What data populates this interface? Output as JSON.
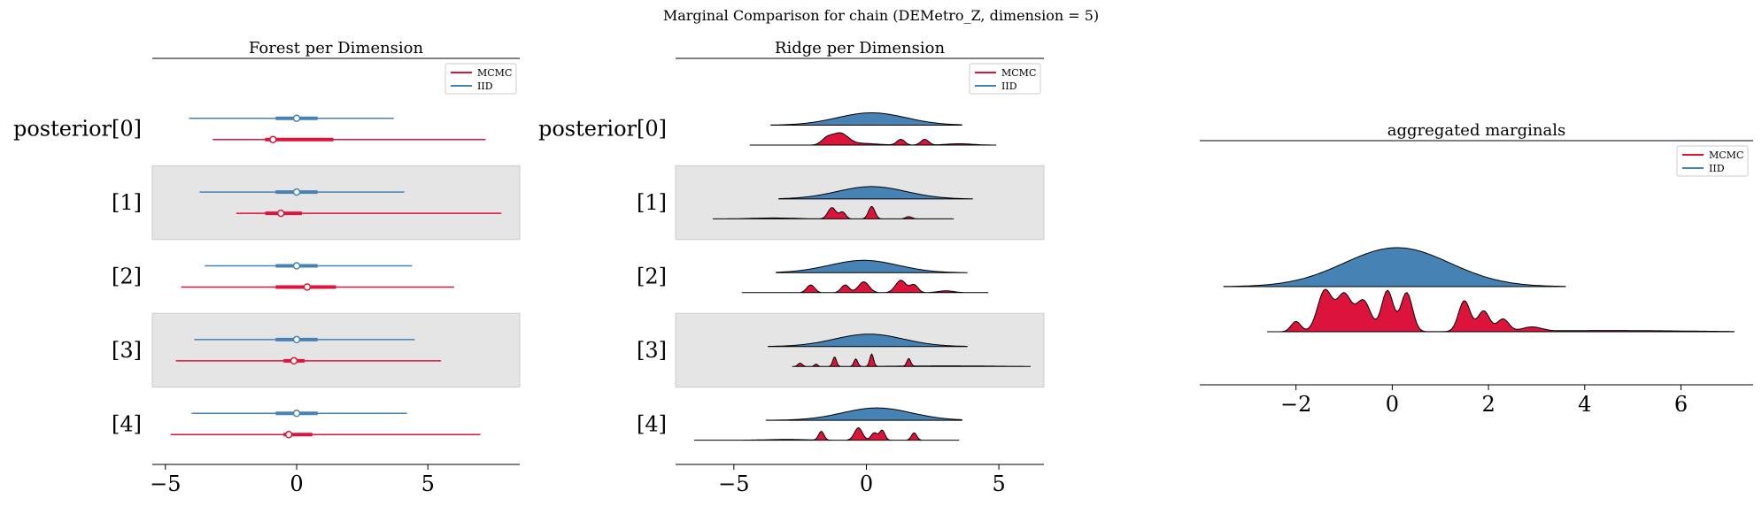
{
  "figure": {
    "title": "Marginal Comparison for chain (DEMetro_Z, dimension = 5)"
  },
  "colors": {
    "mcmc": "#dc143c",
    "iid": "#4682b4",
    "band": "#e5e5e5",
    "outline": "#000000"
  },
  "chart_data": [
    {
      "type": "forest",
      "title": "Forest per Dimension",
      "legend": {
        "placement": "top-right",
        "entries": [
          "MCMC",
          "IID"
        ]
      },
      "row_labels": [
        "posterior[0]",
        "[1]",
        "[2]",
        "[3]",
        "[4]"
      ],
      "x_ticks": [
        -5,
        0,
        5
      ],
      "xlim": [
        -5.5,
        8.5
      ],
      "series": [
        {
          "name": "IID",
          "rows": [
            {
              "lo": -4.1,
              "q1": -0.8,
              "mid": 0.0,
              "q3": 0.8,
              "hi": 3.7
            },
            {
              "lo": -3.7,
              "q1": -0.8,
              "mid": 0.0,
              "q3": 0.8,
              "hi": 4.1
            },
            {
              "lo": -3.5,
              "q1": -0.8,
              "mid": 0.0,
              "q3": 0.8,
              "hi": 4.4
            },
            {
              "lo": -3.9,
              "q1": -0.8,
              "mid": 0.0,
              "q3": 0.8,
              "hi": 4.5
            },
            {
              "lo": -4.0,
              "q1": -0.8,
              "mid": 0.0,
              "q3": 0.8,
              "hi": 4.2
            }
          ]
        },
        {
          "name": "MCMC",
          "rows": [
            {
              "lo": -3.2,
              "q1": -1.2,
              "mid": -0.9,
              "q3": 1.4,
              "hi": 7.2
            },
            {
              "lo": -2.3,
              "q1": -1.2,
              "mid": -0.6,
              "q3": 0.2,
              "hi": 7.8
            },
            {
              "lo": -4.4,
              "q1": -0.8,
              "mid": 0.4,
              "q3": 1.5,
              "hi": 6.0
            },
            {
              "lo": -4.6,
              "q1": -0.5,
              "mid": -0.1,
              "q3": 0.3,
              "hi": 5.5
            },
            {
              "lo": -4.8,
              "q1": -0.5,
              "mid": -0.3,
              "q3": 0.6,
              "hi": 7.0
            }
          ]
        }
      ]
    },
    {
      "type": "ridge",
      "title": "Ridge per Dimension",
      "legend": {
        "placement": "top-right",
        "entries": [
          "MCMC",
          "IID"
        ]
      },
      "row_labels": [
        "posterior[0]",
        "[1]",
        "[2]",
        "[3]",
        "[4]"
      ],
      "x_ticks": [
        -5,
        0,
        5
      ],
      "xlim": [
        -7.2,
        6.7
      ],
      "series": [
        {
          "name": "IID",
          "rows": [
            {
              "range": [
                -3.6,
                3.6
              ],
              "peaks": [
                [
                  0.2,
                  1.0,
                  1.3
                ]
              ]
            },
            {
              "range": [
                -3.3,
                4.0
              ],
              "peaks": [
                [
                  0.2,
                  1.0,
                  1.3
                ]
              ]
            },
            {
              "range": [
                -3.4,
                3.8
              ],
              "peaks": [
                [
                  -0.1,
                  1.0,
                  1.3
                ]
              ]
            },
            {
              "range": [
                -3.7,
                3.8
              ],
              "peaks": [
                [
                  0.1,
                  1.0,
                  1.3
                ]
              ]
            },
            {
              "range": [
                -3.8,
                3.6
              ],
              "peaks": [
                [
                  0.4,
                  1.0,
                  1.3
                ]
              ]
            }
          ]
        },
        {
          "name": "MCMC",
          "rows": [
            {
              "range": [
                -4.4,
                4.9
              ],
              "peaks": [
                [
                  -1.0,
                  1.0,
                  0.3
                ],
                [
                  -1.5,
                  0.5,
                  0.2
                ],
                [
                  1.3,
                  0.5,
                  0.15
                ],
                [
                  2.2,
                  0.5,
                  0.15
                ],
                [
                  -0.2,
                  0.15,
                  0.6
                ],
                [
                  3.5,
                  0.12,
                  0.5
                ]
              ]
            },
            {
              "range": [
                -5.8,
                3.3
              ],
              "peaks": [
                [
                  -1.3,
                  1.0,
                  0.15
                ],
                [
                  -0.9,
                  0.6,
                  0.12
                ],
                [
                  0.2,
                  1.1,
                  0.12
                ],
                [
                  1.6,
                  0.2,
                  0.12
                ],
                [
                  -3.5,
                  0.08,
                  0.8
                ]
              ]
            },
            {
              "range": [
                -4.7,
                4.6
              ],
              "peaks": [
                [
                  -2.1,
                  0.5,
                  0.15
                ],
                [
                  -0.8,
                  0.5,
                  0.15
                ],
                [
                  -0.1,
                  0.7,
                  0.2
                ],
                [
                  1.3,
                  0.8,
                  0.2
                ],
                [
                  1.8,
                  0.5,
                  0.15
                ],
                [
                  3.0,
                  0.12,
                  0.3
                ]
              ]
            },
            {
              "range": [
                -2.8,
                6.2
              ],
              "peaks": [
                [
                  -2.5,
                  0.35,
                  0.08
                ],
                [
                  -1.2,
                  1.0,
                  0.07
                ],
                [
                  -0.4,
                  0.8,
                  0.07
                ],
                [
                  0.2,
                  1.3,
                  0.07
                ],
                [
                  1.6,
                  0.8,
                  0.07
                ],
                [
                  -1.9,
                  0.25,
                  0.06
                ],
                [
                  3.0,
                  0.06,
                  1.5
                ]
              ]
            },
            {
              "range": [
                -6.5,
                3.5
              ],
              "peaks": [
                [
                  -1.7,
                  0.7,
                  0.1
                ],
                [
                  -0.3,
                  1.0,
                  0.15
                ],
                [
                  0.3,
                  0.6,
                  0.12
                ],
                [
                  0.6,
                  0.8,
                  0.1
                ],
                [
                  1.8,
                  0.6,
                  0.1
                ],
                [
                  -3.0,
                  0.06,
                  0.8
                ]
              ]
            }
          ]
        }
      ]
    },
    {
      "type": "ridge",
      "title": "aggregated marginals",
      "legend": {
        "placement": "top-right",
        "entries": [
          "MCMC",
          "IID"
        ]
      },
      "x_ticks": [
        -2,
        0,
        2,
        4,
        6
      ],
      "xlim": [
        -4.0,
        7.5
      ],
      "series": [
        {
          "name": "IID",
          "range": [
            -3.5,
            3.6
          ],
          "peaks": [
            [
              0.1,
              1.0,
              1.1
            ]
          ]
        },
        {
          "name": "MCMC",
          "range": [
            -2.6,
            7.1
          ],
          "peaks": [
            [
              -2.0,
              0.25,
              0.1
            ],
            [
              -1.4,
              1.0,
              0.15
            ],
            [
              -1.0,
              0.9,
              0.15
            ],
            [
              -0.6,
              0.75,
              0.15
            ],
            [
              -0.1,
              1.0,
              0.12
            ],
            [
              0.3,
              0.95,
              0.12
            ],
            [
              1.5,
              0.75,
              0.12
            ],
            [
              1.9,
              0.5,
              0.12
            ],
            [
              2.3,
              0.3,
              0.12
            ],
            [
              2.9,
              0.1,
              0.2
            ],
            [
              4.5,
              0.03,
              1.5
            ]
          ]
        }
      ]
    }
  ]
}
